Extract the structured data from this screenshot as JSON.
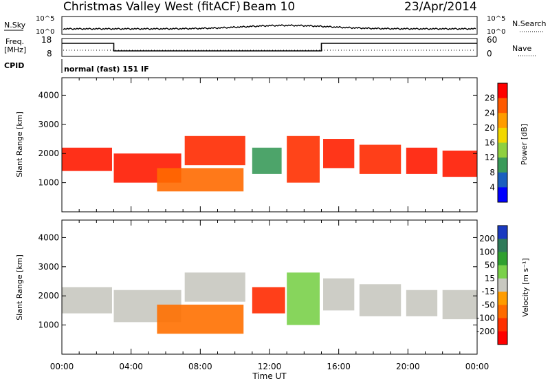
{
  "header": {
    "title": "Christmas Valley West (fitACF)",
    "beam": "Beam 10",
    "date": "23/Apr/2014"
  },
  "noise_panel": {
    "left_label": "N.Sky",
    "right_label": "N.Search",
    "left_ticks": [
      "10^5",
      "10^0"
    ],
    "right_ticks": [
      "10^5",
      "10^0"
    ]
  },
  "freq_panel": {
    "left_label_1": "Freq.",
    "left_label_2": "[MHz]",
    "left_ticks": [
      "18",
      "8"
    ],
    "right_label": "Nave",
    "right_ticks": [
      "60",
      "0"
    ]
  },
  "cpid": {
    "label": "CPID",
    "value": "normal (fast) 151 IF"
  },
  "chart_data": [
    {
      "type": "heatmap",
      "name": "power",
      "ylabel": "Slant Range [km]",
      "yticks": [
        "1000",
        "2000",
        "3000",
        "4000"
      ],
      "ylim": [
        0,
        4600
      ],
      "xlim": [
        0,
        24
      ],
      "colorbar": {
        "label": "Power [dB]",
        "ticks": [
          "28",
          "24",
          "20",
          "16",
          "12",
          "8",
          "4"
        ],
        "colors": [
          "#ff0000",
          "#ff5a00",
          "#ff9c00",
          "#f2d700",
          "#8fd040",
          "#3a9a5a",
          "#1a5fbf",
          "#0000ff"
        ]
      },
      "bands": [
        {
          "x0": 0.0,
          "x1": 2.9,
          "y0": 1400,
          "y1": 2200,
          "color": "#ff1a00"
        },
        {
          "x0": 3.0,
          "x1": 6.9,
          "y0": 1000,
          "y1": 2000,
          "color": "#ff1a00"
        },
        {
          "x0": 7.1,
          "x1": 10.6,
          "y0": 1600,
          "y1": 2600,
          "color": "#ff2a00"
        },
        {
          "x0": 5.5,
          "x1": 10.5,
          "y0": 700,
          "y1": 1500,
          "color": "#ff6a00"
        },
        {
          "x0": 11.0,
          "x1": 12.7,
          "y0": 1300,
          "y1": 2200,
          "color": "#3a9a5a"
        },
        {
          "x0": 13.0,
          "x1": 14.9,
          "y0": 1000,
          "y1": 2600,
          "color": "#ff3000"
        },
        {
          "x0": 15.1,
          "x1": 16.9,
          "y0": 1500,
          "y1": 2500,
          "color": "#ff2000"
        },
        {
          "x0": 17.2,
          "x1": 19.6,
          "y0": 1300,
          "y1": 2300,
          "color": "#ff2a00"
        },
        {
          "x0": 19.9,
          "x1": 21.7,
          "y0": 1300,
          "y1": 2200,
          "color": "#ff1a00"
        },
        {
          "x0": 22.0,
          "x1": 24.0,
          "y0": 1200,
          "y1": 2100,
          "color": "#ff1a00"
        }
      ]
    },
    {
      "type": "heatmap",
      "name": "velocity",
      "ylabel": "Slant Range [km]",
      "yticks": [
        "1000",
        "2000",
        "3000",
        "4000"
      ],
      "ylim": [
        0,
        4600
      ],
      "xlim": [
        0,
        24
      ],
      "xticks": [
        "00:00",
        "04:00",
        "08:00",
        "12:00",
        "16:00",
        "20:00",
        "00:00"
      ],
      "xlabel": "Time UT",
      "colorbar": {
        "label": "Velocity [m s⁻¹]",
        "ticks": [
          "200",
          "100",
          "50",
          "15",
          "-15",
          "-50",
          "-100",
          "-200"
        ],
        "colors": [
          "#1a3ac0",
          "#2f7a5a",
          "#2fa02f",
          "#7ad04a",
          "#c8c8c0",
          "#ff9c00",
          "#ff6a00",
          "#ff3000",
          "#ff0000"
        ]
      },
      "bands": [
        {
          "x0": 0.0,
          "x1": 2.9,
          "y0": 1400,
          "y1": 2300,
          "color": "#c8c8c0"
        },
        {
          "x0": 3.0,
          "x1": 6.9,
          "y0": 1100,
          "y1": 2200,
          "color": "#c8c8c0"
        },
        {
          "x0": 7.1,
          "x1": 10.6,
          "y0": 1800,
          "y1": 2800,
          "color": "#c8c8c0"
        },
        {
          "x0": 5.5,
          "x1": 10.5,
          "y0": 700,
          "y1": 1700,
          "color": "#ff7000"
        },
        {
          "x0": 11.0,
          "x1": 12.9,
          "y0": 1400,
          "y1": 2300,
          "color": "#ff2a00"
        },
        {
          "x0": 13.0,
          "x1": 14.9,
          "y0": 1000,
          "y1": 2800,
          "color": "#7ad04a"
        },
        {
          "x0": 15.1,
          "x1": 16.9,
          "y0": 1500,
          "y1": 2600,
          "color": "#c8c8c0"
        },
        {
          "x0": 17.2,
          "x1": 19.6,
          "y0": 1300,
          "y1": 2400,
          "color": "#c8c8c0"
        },
        {
          "x0": 19.9,
          "x1": 21.7,
          "y0": 1300,
          "y1": 2200,
          "color": "#c8c8c0"
        },
        {
          "x0": 22.0,
          "x1": 24.0,
          "y0": 1200,
          "y1": 2200,
          "color": "#c8c8c0"
        }
      ]
    }
  ]
}
